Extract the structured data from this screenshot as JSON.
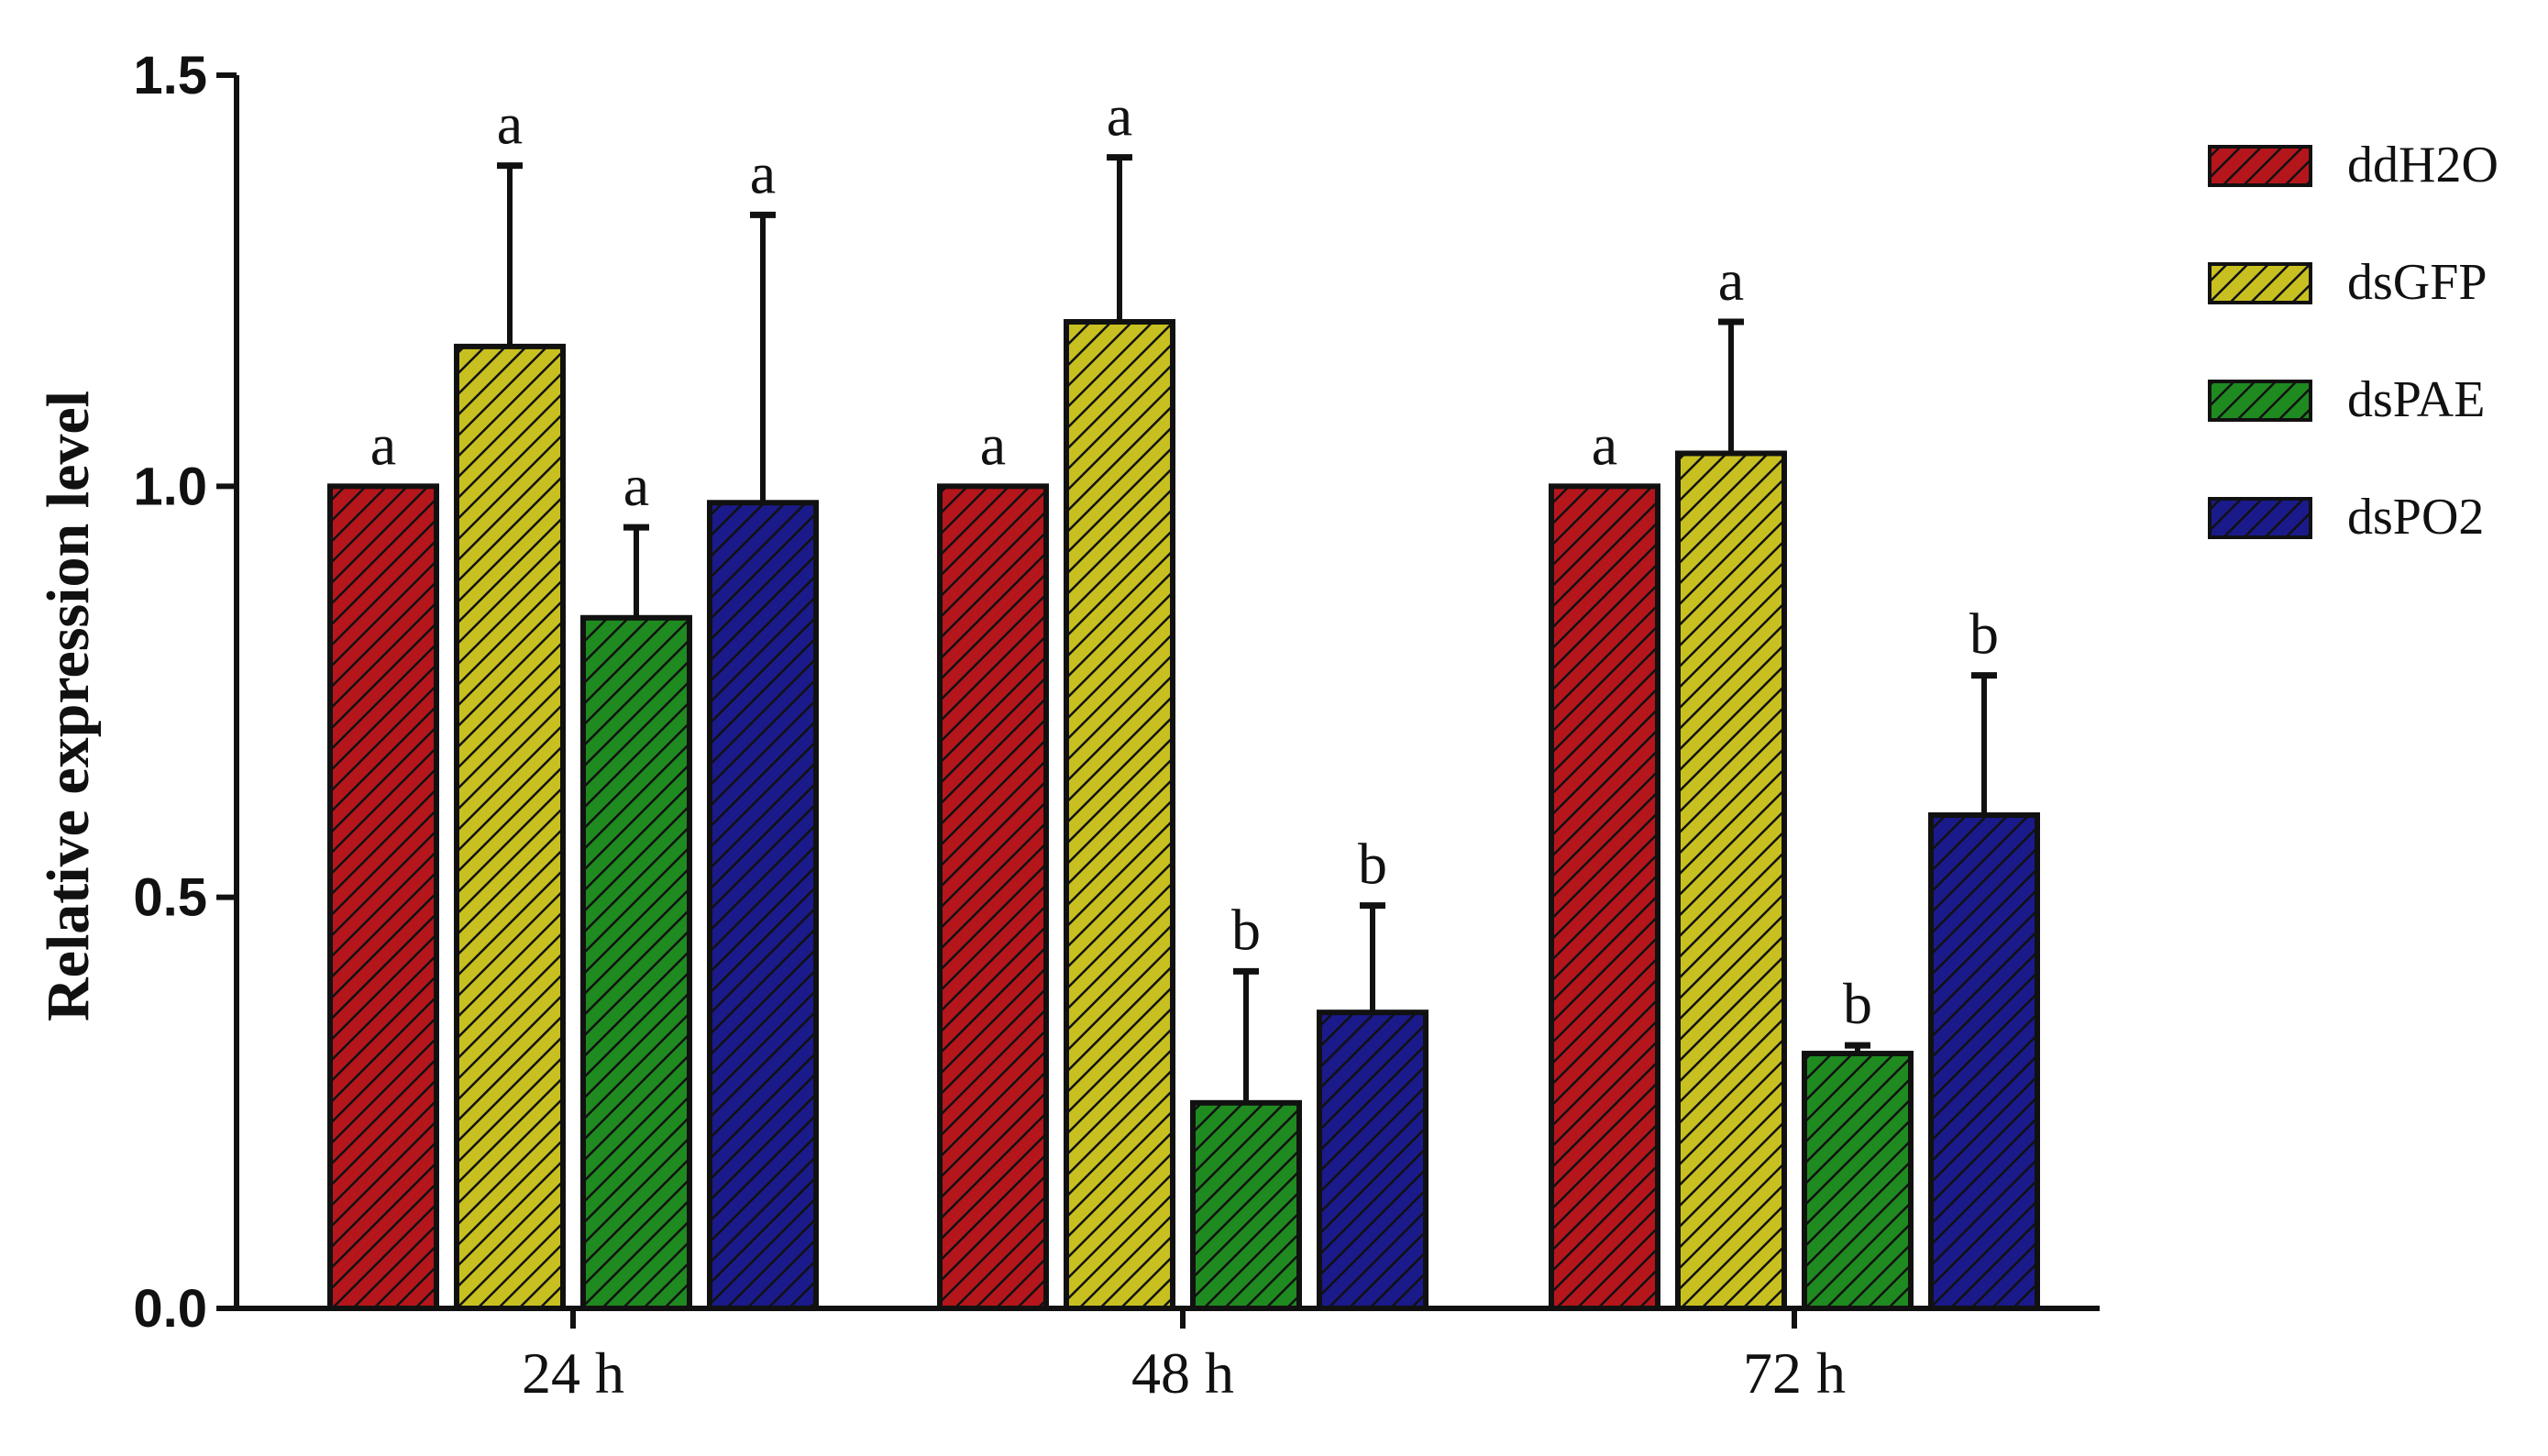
{
  "chart_data": {
    "type": "bar",
    "ylabel": "Relative expression level",
    "xlabel": "",
    "ylim": [
      0,
      1.5
    ],
    "yticks": [
      "0.0",
      "0.5",
      "1.0",
      "1.5"
    ],
    "categories": [
      "24 h",
      "48 h",
      "72 h"
    ],
    "legend_position": "right",
    "series": [
      {
        "name": "ddH2O",
        "color": "#b5161c",
        "values": [
          1.0,
          1.0,
          1.0
        ],
        "errors": [
          0,
          0,
          0
        ],
        "letters": [
          "a",
          "a",
          "a"
        ]
      },
      {
        "name": "dsGFP",
        "color": "#c8c020",
        "values": [
          1.17,
          1.2,
          1.04
        ],
        "errors": [
          0.22,
          0.2,
          0.16
        ],
        "letters": [
          "a",
          "a",
          "a"
        ]
      },
      {
        "name": "dsPAE",
        "color": "#1f8a1f",
        "values": [
          0.84,
          0.25,
          0.31
        ],
        "errors": [
          0.11,
          0.16,
          0.01
        ],
        "letters": [
          "a",
          "b",
          "b"
        ]
      },
      {
        "name": "dsPO2",
        "color": "#1a1a8a",
        "values": [
          0.98,
          0.36,
          0.6
        ],
        "errors": [
          0.35,
          0.13,
          0.17
        ],
        "letters": [
          "a",
          "b",
          "b"
        ]
      }
    ]
  }
}
